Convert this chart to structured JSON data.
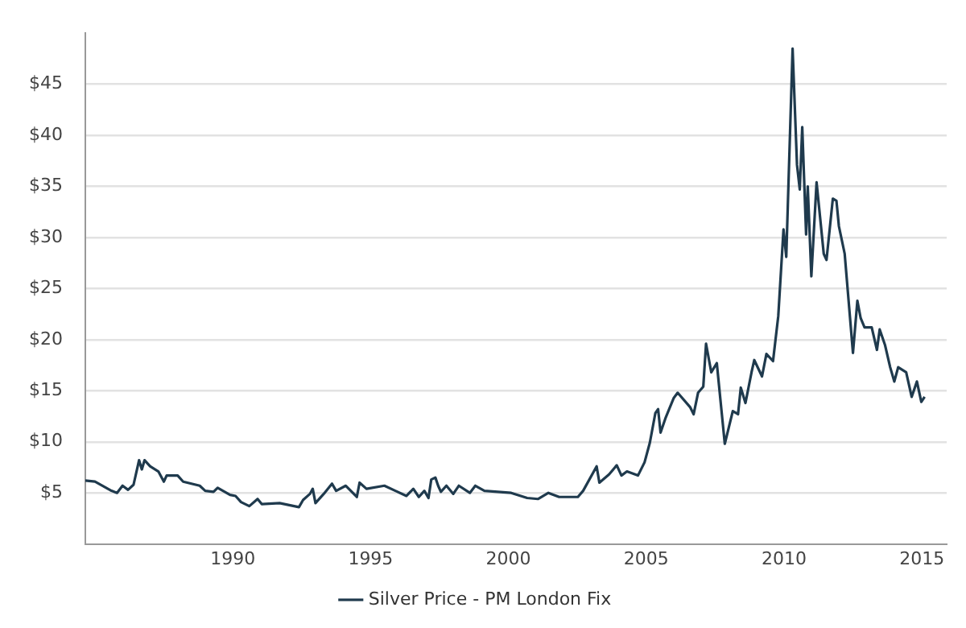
{
  "chart_data": {
    "type": "line",
    "xlim": [
      1984.65,
      2015.9
    ],
    "ylim": [
      0,
      50
    ],
    "xticks": [
      1990,
      1995,
      2000,
      2005,
      2010,
      2015
    ],
    "yticks": [
      {
        "value": 5,
        "label": "$5"
      },
      {
        "value": 10,
        "label": "$10"
      },
      {
        "value": 15,
        "label": "$15"
      },
      {
        "value": 20,
        "label": "$20"
      },
      {
        "value": 25,
        "label": "$25"
      },
      {
        "value": 30,
        "label": "$30"
      },
      {
        "value": 35,
        "label": "$35"
      },
      {
        "value": 40,
        "label": "$40"
      },
      {
        "value": 45,
        "label": "$45"
      }
    ],
    "grid": "y",
    "legend": "bottom",
    "marker": "none",
    "line_style": "solid",
    "series": [
      {
        "name": "Silver Price - PM London Fix",
        "color": "#1f3a4d",
        "x": [
          1984.65,
          1985.0,
          1985.6,
          1985.8,
          1986.0,
          1986.2,
          1986.4,
          1986.6,
          1986.7,
          1986.8,
          1987.0,
          1987.3,
          1987.5,
          1987.6,
          1988.0,
          1988.2,
          1988.8,
          1989.0,
          1989.3,
          1989.45,
          1989.9,
          1990.1,
          1990.3,
          1990.6,
          1990.9,
          1991.05,
          1991.7,
          1992.4,
          1992.55,
          1992.8,
          1992.9,
          1993.0,
          1993.3,
          1993.6,
          1993.75,
          1994.1,
          1994.5,
          1994.6,
          1994.85,
          1995.5,
          1995.9,
          1996.3,
          1996.55,
          1996.75,
          1996.95,
          1997.1,
          1997.2,
          1997.35,
          1997.45,
          1997.55,
          1997.75,
          1998.0,
          1998.2,
          1998.6,
          1998.8,
          1999.13,
          2000.1,
          2000.68,
          2001.07,
          2001.45,
          2001.84,
          2002.52,
          2002.71,
          2003.2,
          2003.3,
          2003.65,
          2003.93,
          2004.1,
          2004.3,
          2004.7,
          2004.94,
          2005.13,
          2005.33,
          2005.43,
          2005.52,
          2005.71,
          2006.0,
          2006.14,
          2006.59,
          2006.72,
          2006.88,
          2007.07,
          2007.17,
          2007.36,
          2007.56,
          2007.85,
          2008.14,
          2008.33,
          2008.43,
          2008.6,
          2008.82,
          2008.92,
          2009.2,
          2009.36,
          2009.6,
          2009.79,
          2009.98,
          2010.08,
          2010.31,
          2010.47,
          2010.57,
          2010.66,
          2010.8,
          2010.86,
          2010.99,
          2011.18,
          2011.44,
          2011.54,
          2011.77,
          2011.9,
          2011.99,
          2012.2,
          2012.5,
          2012.66,
          2012.78,
          2012.92,
          2013.18,
          2013.37,
          2013.47,
          2013.66,
          2013.85,
          2014.0,
          2014.14,
          2014.43,
          2014.63,
          2014.82,
          2014.98,
          2015.1
        ],
        "values": [
          6.2,
          6.1,
          5.2,
          5.0,
          5.7,
          5.3,
          5.8,
          8.2,
          7.3,
          8.2,
          7.6,
          7.1,
          6.1,
          6.7,
          6.7,
          6.1,
          5.7,
          5.2,
          5.1,
          5.5,
          4.8,
          4.7,
          4.1,
          3.7,
          4.4,
          3.9,
          4.0,
          3.6,
          4.3,
          4.9,
          5.4,
          4.0,
          4.9,
          5.9,
          5.2,
          5.7,
          4.6,
          6.0,
          5.4,
          5.7,
          5.2,
          4.7,
          5.4,
          4.6,
          5.2,
          4.5,
          6.3,
          6.5,
          5.7,
          5.1,
          5.7,
          4.9,
          5.7,
          5.0,
          5.7,
          5.2,
          5.0,
          4.5,
          4.4,
          5.0,
          4.6,
          4.6,
          5.2,
          7.6,
          6.0,
          6.8,
          7.7,
          6.7,
          7.1,
          6.7,
          8.0,
          9.9,
          12.8,
          13.2,
          10.9,
          12.4,
          14.3,
          14.8,
          13.4,
          12.7,
          14.8,
          15.4,
          19.6,
          16.8,
          17.7,
          9.8,
          13.0,
          12.7,
          15.3,
          13.8,
          16.8,
          18.0,
          16.4,
          18.6,
          17.9,
          22.3,
          30.8,
          28.1,
          48.5,
          37.1,
          34.7,
          40.8,
          30.3,
          35.0,
          26.2,
          35.4,
          28.4,
          27.8,
          33.8,
          33.6,
          31.1,
          28.4,
          18.7,
          23.8,
          22.1,
          21.2,
          21.2,
          19.0,
          21.0,
          19.5,
          17.3,
          15.9,
          17.3,
          16.8,
          14.4,
          15.9,
          13.9,
          14.4
        ]
      }
    ]
  }
}
